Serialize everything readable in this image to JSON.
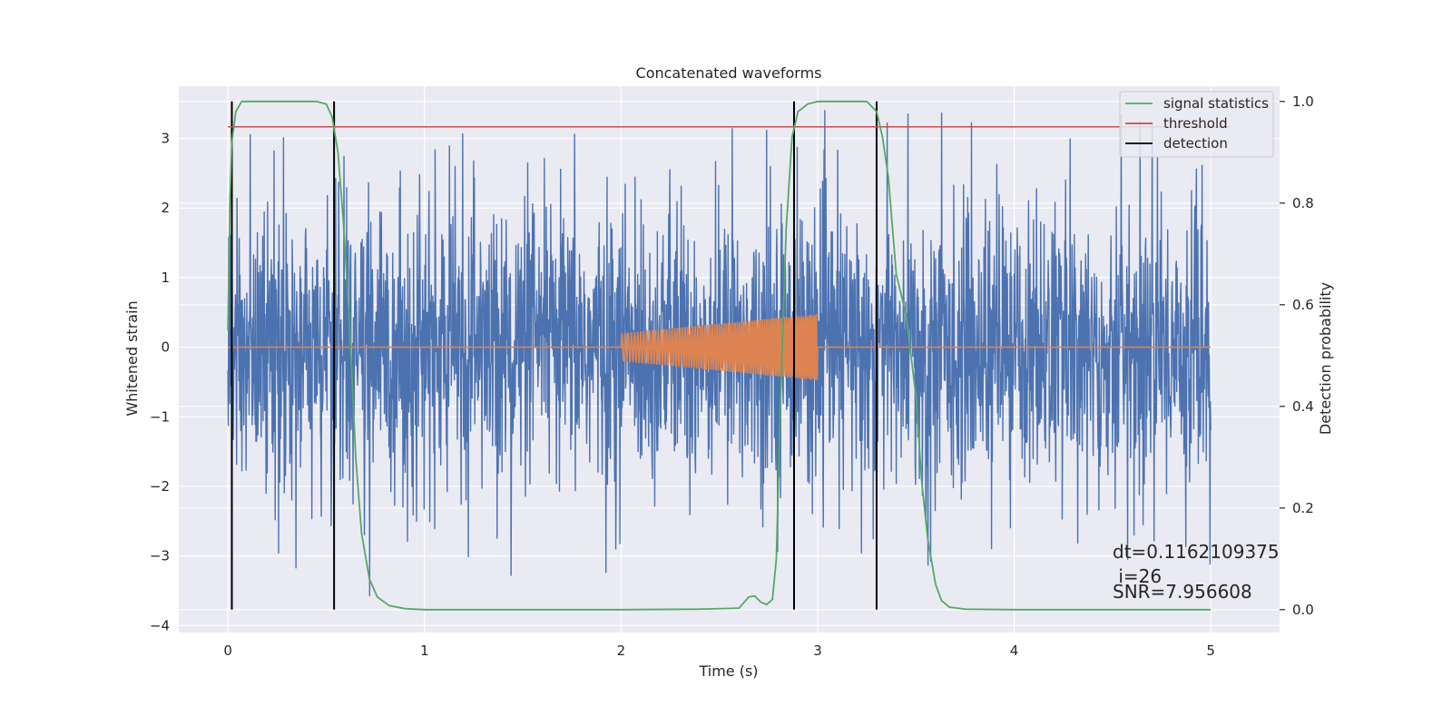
{
  "chart_data": {
    "type": "line",
    "title": "Concatenated waveforms",
    "xlabel": "Time (s)",
    "ylabel_left": "Whitened strain",
    "ylabel_right": "Detection probability",
    "xlim": [
      -0.25,
      5.35
    ],
    "ylim_left": [
      -4.1,
      3.75
    ],
    "ylim_right": [
      -0.045,
      1.03
    ],
    "x_ticks": [
      0,
      1,
      2,
      3,
      4,
      5
    ],
    "y_left_ticks": [
      -4,
      -3,
      -2,
      -1,
      0,
      1,
      2,
      3
    ],
    "y_right_ticks": [
      0.0,
      0.2,
      0.4,
      0.6,
      0.8,
      1.0
    ],
    "x_tick_labels": [
      "0",
      "1",
      "2",
      "3",
      "4",
      "5"
    ],
    "y_left_tick_labels": [
      "−4",
      "−3",
      "−2",
      "−1",
      "0",
      "1",
      "2",
      "3"
    ],
    "y_right_tick_labels": [
      "0.0",
      "0.2",
      "0.4",
      "0.6",
      "0.8",
      "1.0"
    ],
    "grid": true,
    "legend_position": "top-right",
    "colors": {
      "strain": "#4c72b0",
      "template": "#dd8452",
      "signal_statistics": "#55a868",
      "threshold": "#c44e52",
      "detection": "#000000",
      "plot_bg": "#eaeaf2",
      "grid": "#ffffff"
    },
    "series": [
      {
        "name": "",
        "axis": "left",
        "kind": "noise",
        "x_range": [
          0,
          5
        ],
        "typical_amplitude": 1.3,
        "peak_amplitude": 3.4
      },
      {
        "name": "",
        "axis": "left",
        "kind": "chirp",
        "x_range": [
          2.0,
          3.0
        ],
        "amplitude_start": 0.2,
        "amplitude_end": 0.48,
        "baseline": 0
      },
      {
        "name": "signal statistics",
        "axis": "right",
        "points": [
          [
            0.0,
            0.55
          ],
          [
            0.01,
            0.8
          ],
          [
            0.02,
            0.92
          ],
          [
            0.04,
            0.98
          ],
          [
            0.07,
            1.0
          ],
          [
            0.45,
            1.0
          ],
          [
            0.5,
            0.995
          ],
          [
            0.53,
            0.97
          ],
          [
            0.56,
            0.9
          ],
          [
            0.59,
            0.75
          ],
          [
            0.62,
            0.55
          ],
          [
            0.65,
            0.3
          ],
          [
            0.68,
            0.15
          ],
          [
            0.72,
            0.06
          ],
          [
            0.76,
            0.025
          ],
          [
            0.82,
            0.008
          ],
          [
            0.9,
            0.002
          ],
          [
            1.0,
            0.0
          ],
          [
            2.0,
            0.0
          ],
          [
            2.4,
            0.001
          ],
          [
            2.6,
            0.003
          ],
          [
            2.65,
            0.025
          ],
          [
            2.68,
            0.027
          ],
          [
            2.71,
            0.015
          ],
          [
            2.74,
            0.01
          ],
          [
            2.77,
            0.02
          ],
          [
            2.79,
            0.1
          ],
          [
            2.81,
            0.4
          ],
          [
            2.84,
            0.75
          ],
          [
            2.87,
            0.93
          ],
          [
            2.9,
            0.98
          ],
          [
            2.95,
            0.995
          ],
          [
            3.0,
            1.0
          ],
          [
            3.25,
            1.0
          ],
          [
            3.3,
            0.98
          ],
          [
            3.33,
            0.93
          ],
          [
            3.36,
            0.85
          ],
          [
            3.4,
            0.66
          ],
          [
            3.45,
            0.58
          ],
          [
            3.5,
            0.42
          ],
          [
            3.53,
            0.25
          ],
          [
            3.56,
            0.14
          ],
          [
            3.6,
            0.05
          ],
          [
            3.63,
            0.018
          ],
          [
            3.67,
            0.005
          ],
          [
            3.75,
            0.001
          ],
          [
            4.0,
            0.0
          ],
          [
            5.0,
            0.0
          ]
        ]
      },
      {
        "name": "threshold",
        "axis": "right",
        "points": [
          [
            0,
            0.95
          ],
          [
            5.1,
            0.95
          ]
        ]
      },
      {
        "name": "detection",
        "axis": "right",
        "vertical_lines": [
          0.02,
          0.54,
          2.88,
          3.3
        ],
        "y_range": [
          0,
          1
        ]
      }
    ],
    "annotations": [
      "dt=0.1162109375",
      " i=26",
      "SNR=7.956608"
    ]
  }
}
